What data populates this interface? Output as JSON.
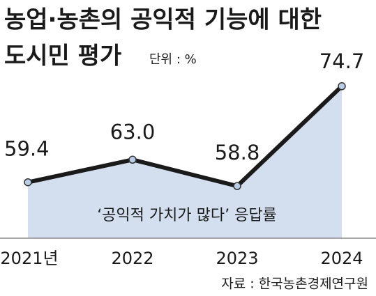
{
  "chart_data": {
    "type": "area-line",
    "title": [
      "농업·농촌의 공익적 기능에 대한",
      "도시민 평가"
    ],
    "unit": "단위 : %",
    "categories": [
      "2021년",
      "2022",
      "2023",
      "2024"
    ],
    "values": [
      59.4,
      63.0,
      58.8,
      74.7
    ],
    "value_labels": [
      "59.4",
      "63.0",
      "58.8",
      "74.7"
    ],
    "annotation": "‘공익적 가치가 많다’ 응답률",
    "source": "자료 : 한국농촌경제연구원",
    "ylim": [
      50.5,
      78
    ],
    "color": "#1a1a1a",
    "fill": "#d3dfee"
  }
}
